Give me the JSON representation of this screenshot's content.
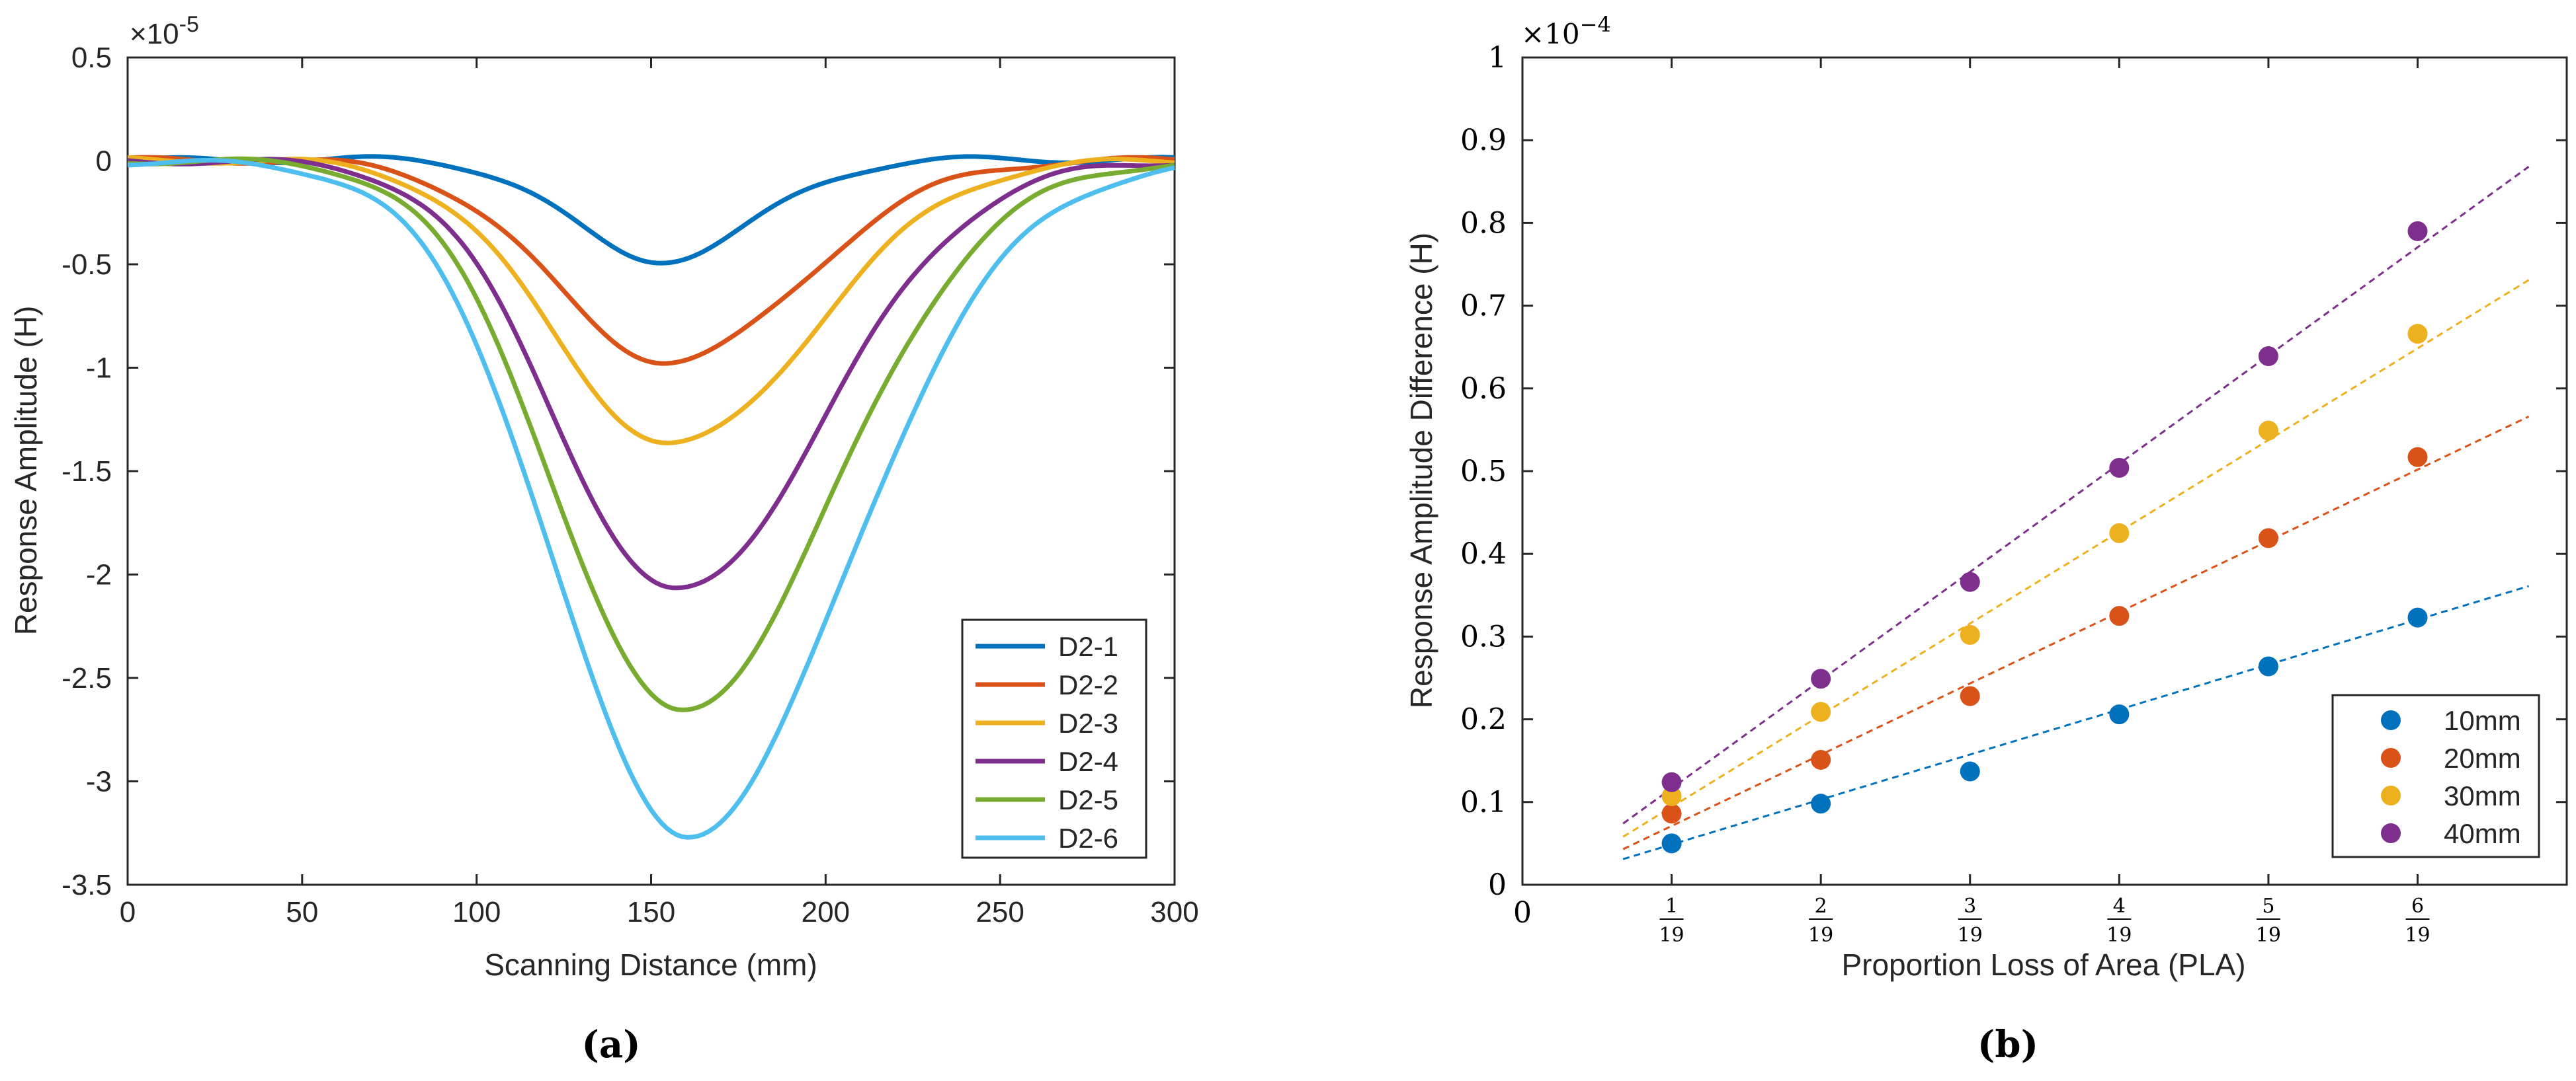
{
  "chart_data": [
    {
      "panel_label": "(a)",
      "type": "line",
      "xlabel": "Scanning Distance (mm)",
      "ylabel": "Response Amplitude (H)",
      "y_exponent": "×10",
      "y_exponent_power": "-5",
      "xlim": [
        0,
        300
      ],
      "ylim": [
        -3.5,
        0.5
      ],
      "x_ticks": [
        0,
        50,
        100,
        150,
        200,
        250,
        300
      ],
      "y_ticks": [
        0.5,
        0,
        -0.5,
        -1,
        -1.5,
        -2,
        -2.5,
        -3,
        -3.5
      ],
      "y_tick_labels": [
        "0.5",
        "0",
        "-0.5",
        "-1",
        "-1.5",
        "-2",
        "-2.5",
        "-3",
        "-3.5"
      ],
      "legend_position": "bottom-right",
      "series": [
        {
          "name": "D2-1",
          "color": "#0072BD",
          "peak_x": 152,
          "peak_y": -0.5,
          "width_left": 25,
          "width_right": 28,
          "offset": 0.02
        },
        {
          "name": "D2-2",
          "color": "#D95319",
          "peak_x": 155,
          "peak_y": -0.98,
          "width_left": 33,
          "width_right": 38,
          "offset": 0.01
        },
        {
          "name": "D2-3",
          "color": "#EDB120",
          "peak_x": 156,
          "peak_y": -1.38,
          "width_left": 34,
          "width_right": 40,
          "offset": 0.01
        },
        {
          "name": "D2-4",
          "color": "#7E2F8E",
          "peak_x": 157,
          "peak_y": -2.08,
          "width_left": 34,
          "width_right": 42,
          "offset": 0.0
        },
        {
          "name": "D2-5",
          "color": "#77AC30",
          "peak_x": 158,
          "peak_y": -2.66,
          "width_left": 35,
          "width_right": 44,
          "offset": 0.0
        },
        {
          "name": "D2-6",
          "color": "#4DBEEE",
          "peak_x": 160,
          "peak_y": -3.24,
          "width_left": 37,
          "width_right": 46,
          "offset": -0.02
        }
      ]
    },
    {
      "panel_label": "(b)",
      "type": "scatter",
      "xlabel": "Proportion Loss of Area (PLA)",
      "ylabel": "Response Amplitude Difference (H)",
      "y_exponent": "×10",
      "y_exponent_power": "−4",
      "xlim": [
        0,
        0.3684
      ],
      "ylim": [
        0,
        1
      ],
      "x_origin_label": "0",
      "x_ticks": [
        0.05263,
        0.10526,
        0.15789,
        0.21053,
        0.26316,
        0.31579
      ],
      "x_tick_numerators": [
        "1",
        "2",
        "3",
        "4",
        "5",
        "6"
      ],
      "x_tick_denominator": "19",
      "y_ticks": [
        0,
        0.1,
        0.2,
        0.3,
        0.4,
        0.5,
        0.6,
        0.7,
        0.8,
        0.9,
        1
      ],
      "y_tick_labels": [
        "0",
        "0.1",
        "0.2",
        "0.3",
        "0.4",
        "0.5",
        "0.6",
        "0.7",
        "0.8",
        "0.9",
        "1"
      ],
      "fit_x_range": [
        0.0355,
        0.355
      ],
      "legend_position": "bottom-right",
      "series": [
        {
          "name": "10mm",
          "color": "#0072BD",
          "values": [
            0.05,
            0.098,
            0.137,
            0.206,
            0.264,
            0.323
          ],
          "fit": [
            0.031,
            0.361
          ]
        },
        {
          "name": "20mm",
          "color": "#D95319",
          "values": [
            0.086,
            0.151,
            0.228,
            0.325,
            0.419,
            0.517
          ],
          "fit": [
            0.043,
            0.566
          ]
        },
        {
          "name": "30mm",
          "color": "#EDB120",
          "values": [
            0.107,
            0.209,
            0.302,
            0.425,
            0.549,
            0.666
          ],
          "fit": [
            0.058,
            0.731
          ]
        },
        {
          "name": "40mm",
          "color": "#7E2F8E",
          "values": [
            0.124,
            0.249,
            0.366,
            0.504,
            0.639,
            0.79
          ],
          "fit": [
            0.074,
            0.868
          ]
        }
      ]
    }
  ]
}
